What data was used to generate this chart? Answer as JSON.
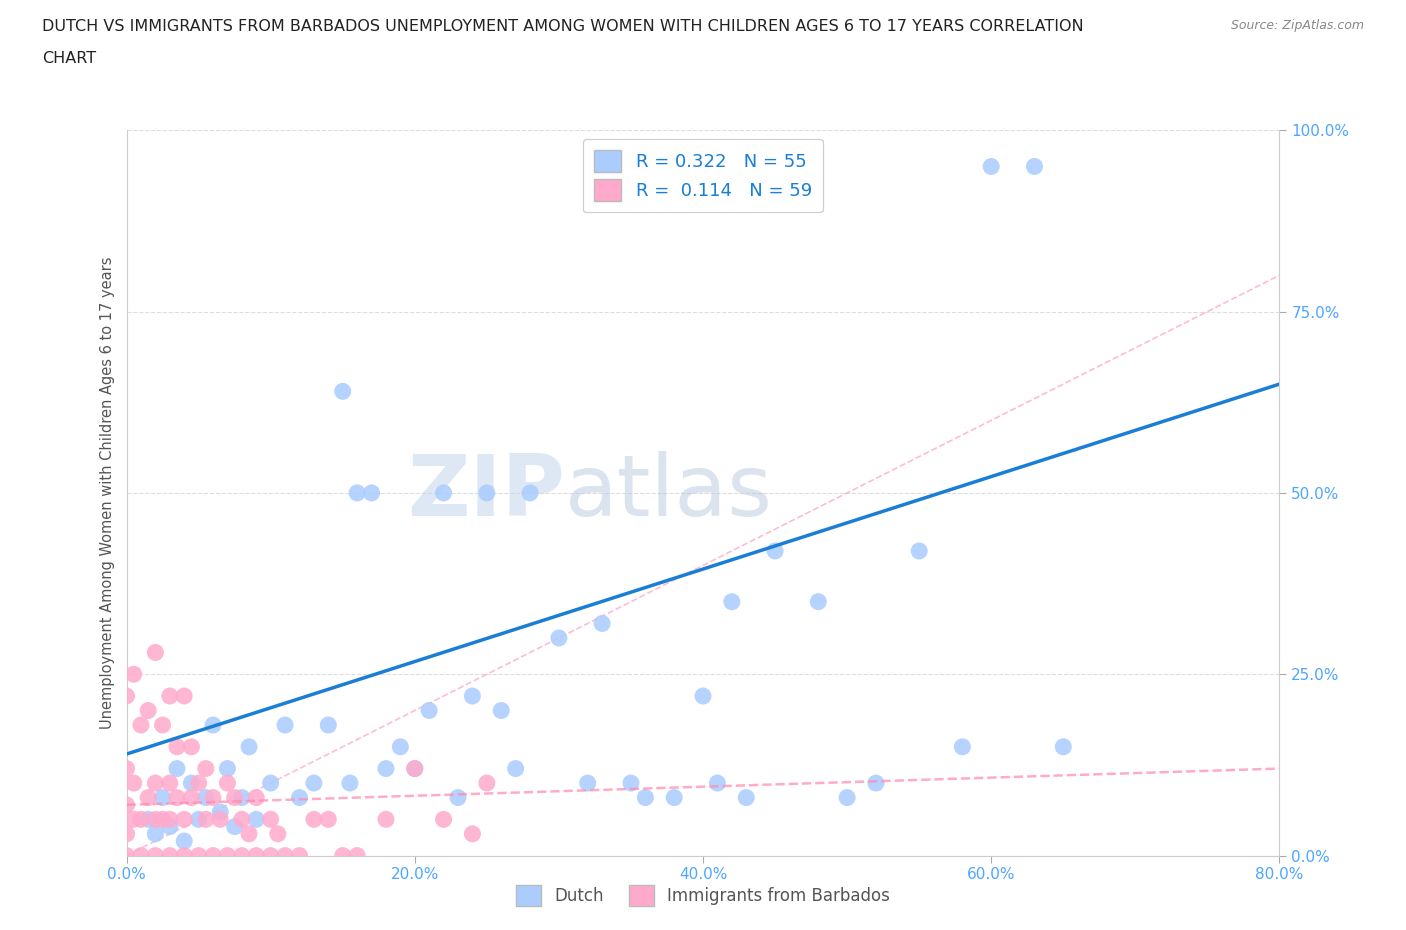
{
  "title_line1": "DUTCH VS IMMIGRANTS FROM BARBADOS UNEMPLOYMENT AMONG WOMEN WITH CHILDREN AGES 6 TO 17 YEARS CORRELATION",
  "title_line2": "CHART",
  "source": "Source: ZipAtlas.com",
  "ylabel": "Unemployment Among Women with Children Ages 6 to 17 years",
  "xlim": [
    0.0,
    0.8
  ],
  "ylim": [
    0.0,
    1.0
  ],
  "xticks": [
    0.0,
    0.2,
    0.4,
    0.6,
    0.8
  ],
  "xtick_labels": [
    "0.0%",
    "20.0%",
    "40.0%",
    "60.0%",
    "80.0%"
  ],
  "yticks": [
    0.0,
    0.25,
    0.5,
    0.75,
    1.0
  ],
  "ytick_labels": [
    "0.0%",
    "25.0%",
    "50.0%",
    "75.0%",
    "100.0%"
  ],
  "dutch_color": "#aaccff",
  "barbados_color": "#ffaacc",
  "dutch_line_color": "#1a7fd4",
  "barbados_line_color": "#ff88aa",
  "ref_line_color": "#ffaacc",
  "tick_color": "#4da6ff",
  "grid_color": "#dddddd",
  "spine_color": "#cccccc",
  "title_color": "#222222",
  "source_color": "#888888",
  "ylabel_color": "#555555",
  "legend_label_color": "#1a7fd4",
  "bottom_legend_label_color": "#555555",
  "dutch_R": 0.322,
  "dutch_N": 55,
  "barbados_R": 0.114,
  "barbados_N": 59,
  "watermark_part1": "ZIP",
  "watermark_part2": "atlas",
  "dutch_x": [
    0.015,
    0.02,
    0.025,
    0.03,
    0.035,
    0.04,
    0.045,
    0.05,
    0.055,
    0.06,
    0.065,
    0.07,
    0.075,
    0.08,
    0.085,
    0.09,
    0.1,
    0.11,
    0.12,
    0.13,
    0.14,
    0.15,
    0.155,
    0.16,
    0.17,
    0.18,
    0.19,
    0.2,
    0.21,
    0.22,
    0.23,
    0.24,
    0.25,
    0.26,
    0.27,
    0.28,
    0.3,
    0.32,
    0.33,
    0.35,
    0.36,
    0.38,
    0.4,
    0.41,
    0.42,
    0.43,
    0.45,
    0.48,
    0.5,
    0.52,
    0.55,
    0.58,
    0.6,
    0.63,
    0.65
  ],
  "dutch_y": [
    0.05,
    0.03,
    0.08,
    0.04,
    0.12,
    0.02,
    0.1,
    0.05,
    0.08,
    0.18,
    0.06,
    0.12,
    0.04,
    0.08,
    0.15,
    0.05,
    0.1,
    0.18,
    0.08,
    0.1,
    0.18,
    0.64,
    0.1,
    0.5,
    0.5,
    0.12,
    0.15,
    0.12,
    0.2,
    0.5,
    0.08,
    0.22,
    0.5,
    0.2,
    0.12,
    0.5,
    0.3,
    0.1,
    0.32,
    0.1,
    0.08,
    0.08,
    0.22,
    0.1,
    0.35,
    0.08,
    0.42,
    0.35,
    0.08,
    0.1,
    0.42,
    0.15,
    0.95,
    0.95,
    0.15
  ],
  "barbados_x": [
    0.0,
    0.0,
    0.0,
    0.0,
    0.0,
    0.005,
    0.005,
    0.005,
    0.01,
    0.01,
    0.01,
    0.015,
    0.015,
    0.02,
    0.02,
    0.02,
    0.02,
    0.025,
    0.025,
    0.03,
    0.03,
    0.03,
    0.03,
    0.035,
    0.035,
    0.04,
    0.04,
    0.04,
    0.045,
    0.045,
    0.05,
    0.05,
    0.055,
    0.055,
    0.06,
    0.06,
    0.065,
    0.07,
    0.07,
    0.075,
    0.08,
    0.08,
    0.085,
    0.09,
    0.09,
    0.1,
    0.1,
    0.105,
    0.11,
    0.12,
    0.13,
    0.14,
    0.15,
    0.16,
    0.18,
    0.2,
    0.22,
    0.24,
    0.25
  ],
  "barbados_y": [
    0.0,
    0.03,
    0.07,
    0.12,
    0.22,
    0.05,
    0.1,
    0.25,
    0.0,
    0.05,
    0.18,
    0.08,
    0.2,
    0.0,
    0.05,
    0.1,
    0.28,
    0.05,
    0.18,
    0.0,
    0.05,
    0.1,
    0.22,
    0.08,
    0.15,
    0.0,
    0.05,
    0.22,
    0.08,
    0.15,
    0.0,
    0.1,
    0.05,
    0.12,
    0.0,
    0.08,
    0.05,
    0.0,
    0.1,
    0.08,
    0.0,
    0.05,
    0.03,
    0.0,
    0.08,
    0.0,
    0.05,
    0.03,
    0.0,
    0.0,
    0.05,
    0.05,
    0.0,
    0.0,
    0.05,
    0.12,
    0.05,
    0.03,
    0.1
  ]
}
